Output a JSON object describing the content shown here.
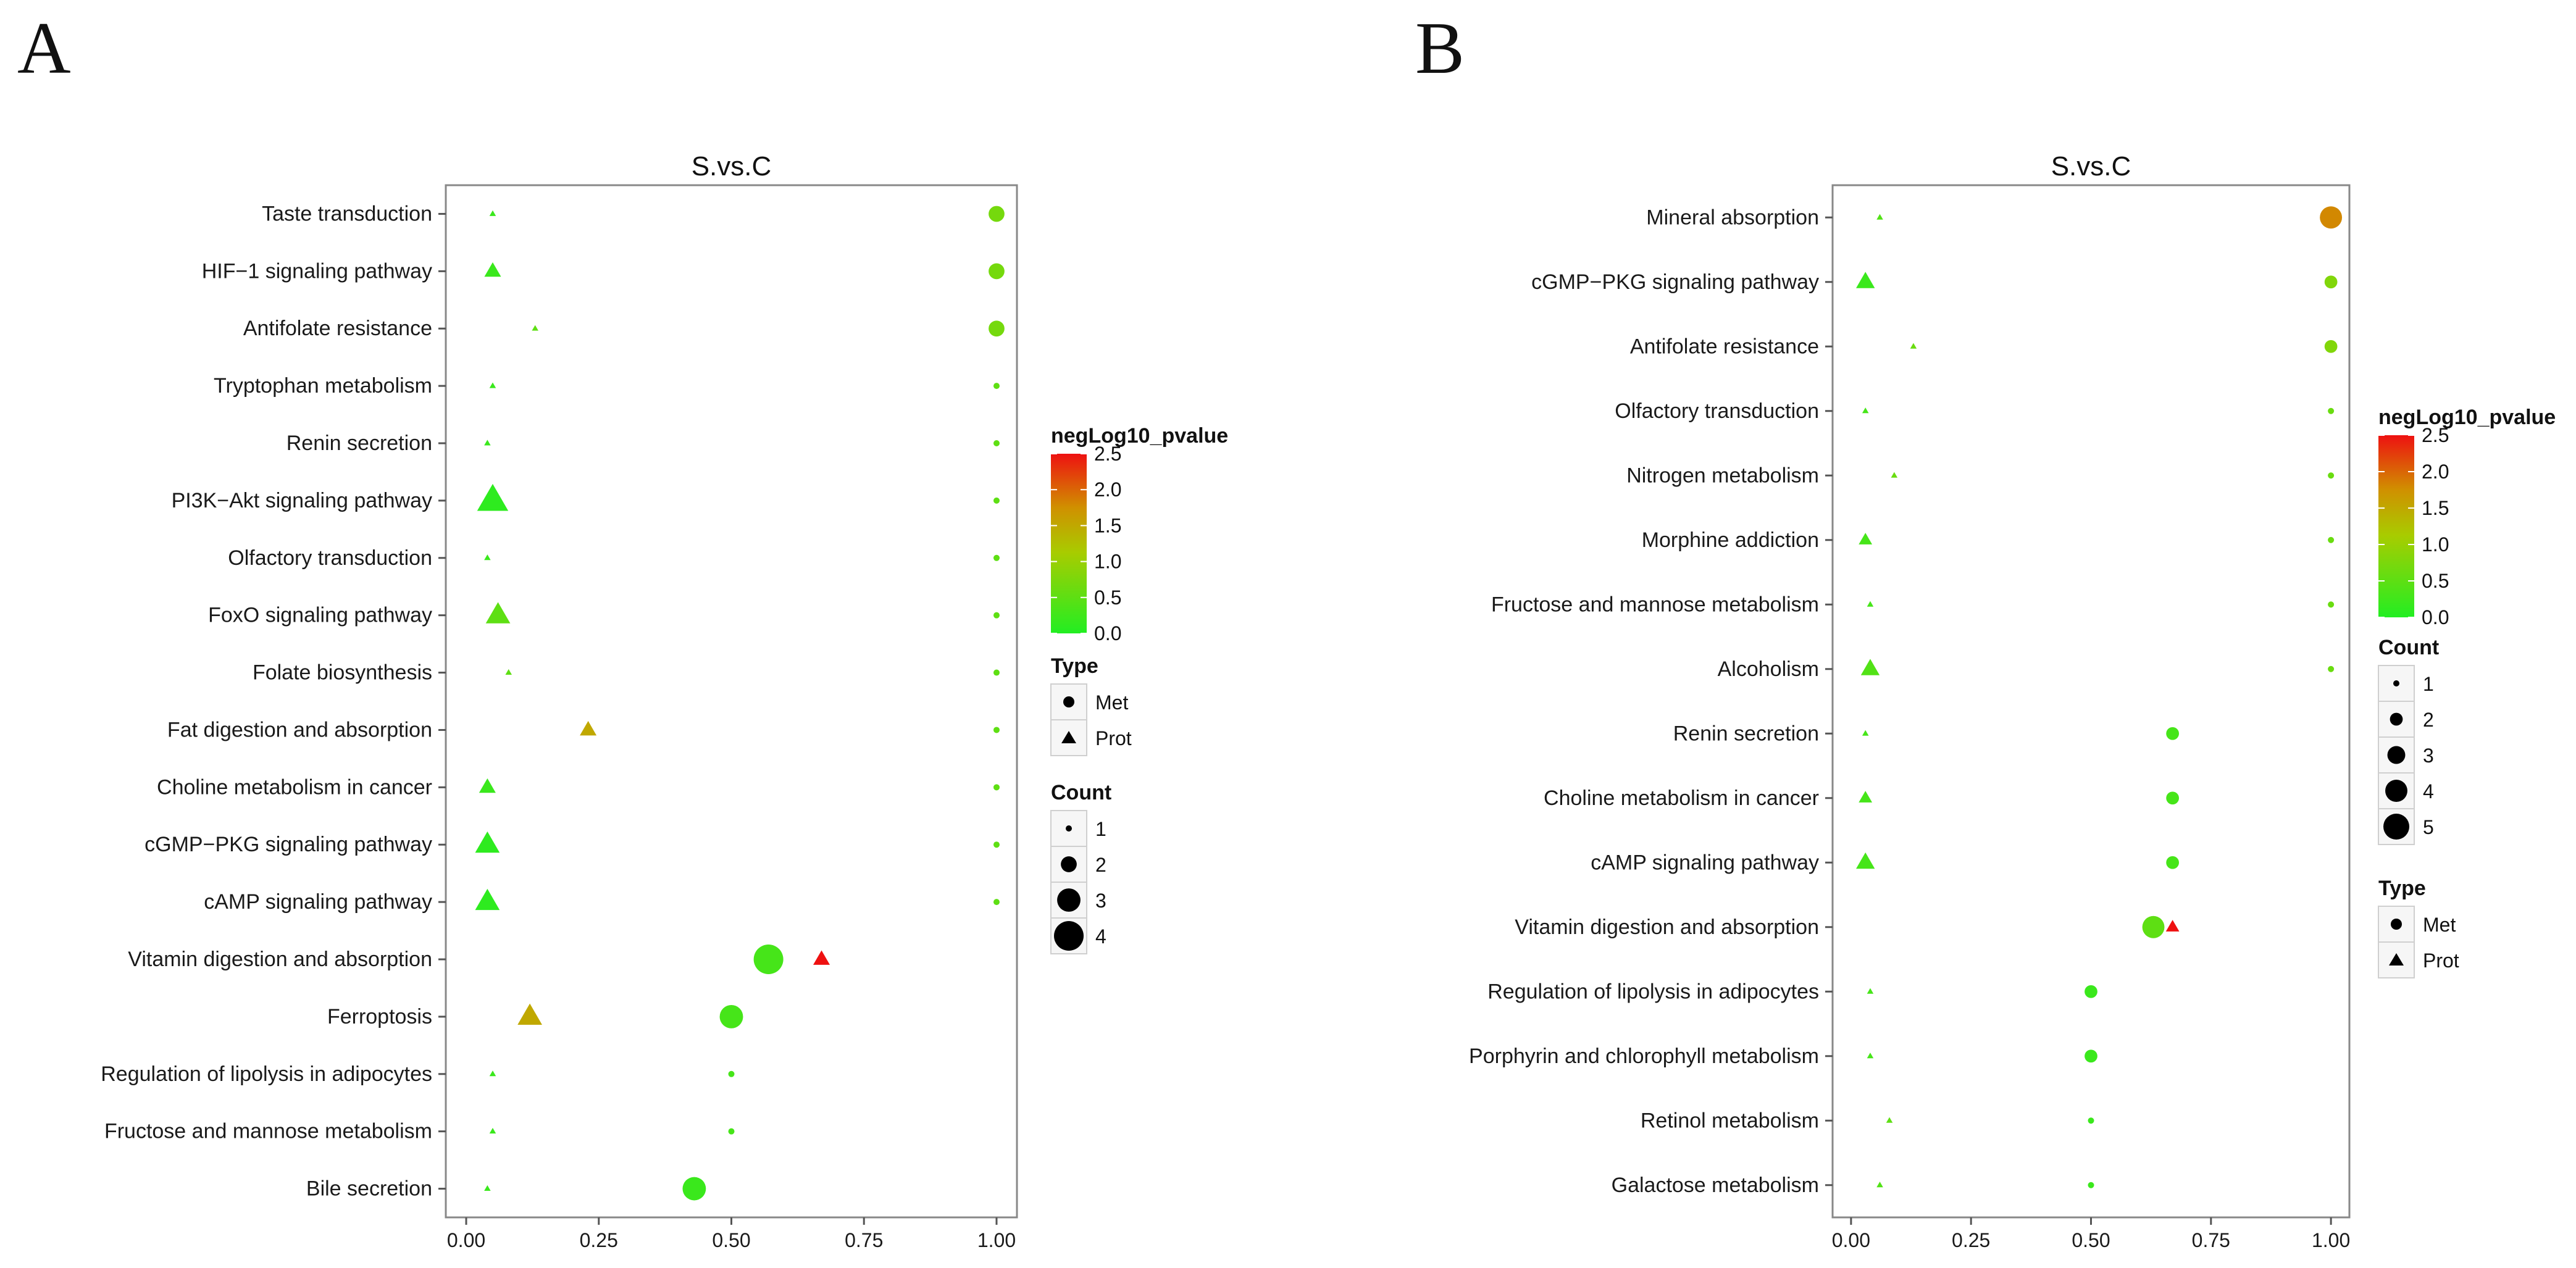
{
  "panels": [
    {
      "label": "A",
      "title": "S.vs.C",
      "legend": {
        "color_title": "negLog10_pvalue",
        "color_ticks": [
          "0.0",
          "0.5",
          "1.0",
          "1.5",
          "2.0",
          "2.5"
        ],
        "type_title": "Type",
        "type_items": [
          "Met",
          "Prot"
        ],
        "count_title": "Count",
        "count_items": [
          "1",
          "2",
          "3",
          "4"
        ]
      }
    },
    {
      "label": "B",
      "title": "S.vs.C",
      "legend": {
        "color_title": "negLog10_pvalue",
        "color_ticks": [
          "0.0",
          "0.5",
          "1.0",
          "1.5",
          "2.0",
          "2.5"
        ],
        "count_title": "Count",
        "count_items": [
          "1",
          "2",
          "3",
          "4",
          "5"
        ],
        "type_title": "Type",
        "type_items": [
          "Met",
          "Prot"
        ]
      }
    }
  ],
  "colors": {
    "low": "#22ee22",
    "mid": "#c8b400",
    "high": "#ee1111"
  },
  "chart_data": [
    {
      "type": "scatter",
      "title": "S.vs.C",
      "xlabel": "",
      "ylabel": "",
      "xlim": [
        0,
        1
      ],
      "xticks": [
        "0.00",
        "0.25",
        "0.50",
        "0.75",
        "1.00"
      ],
      "color_range": [
        0,
        2.5
      ],
      "categories": [
        "Taste transduction",
        "HIF−1 signaling pathway",
        "Antifolate resistance",
        "Tryptophan metabolism",
        "Renin secretion",
        "PI3K−Akt signaling pathway",
        "Olfactory transduction",
        "FoxO signaling pathway",
        "Folate biosynthesis",
        "Fat digestion and absorption",
        "Choline metabolism in cancer",
        "cGMP−PKG signaling pathway",
        "cAMP signaling pathway",
        "Vitamin digestion and absorption",
        "Ferroptosis",
        "Regulation of lipolysis in adipocytes",
        "Fructose and mannose metabolism",
        "Bile secretion"
      ],
      "points": [
        {
          "category": "Taste transduction",
          "x": 0.05,
          "type": "Prot",
          "count": 1,
          "neglog10p": 0.2
        },
        {
          "category": "Taste transduction",
          "x": 1.0,
          "type": "Met",
          "count": 2,
          "neglog10p": 0.7
        },
        {
          "category": "HIF−1 signaling pathway",
          "x": 0.05,
          "type": "Prot",
          "count": 2,
          "neglog10p": 0.2
        },
        {
          "category": "HIF−1 signaling pathway",
          "x": 1.0,
          "type": "Met",
          "count": 2,
          "neglog10p": 0.7
        },
        {
          "category": "Antifolate resistance",
          "x": 0.13,
          "type": "Prot",
          "count": 1,
          "neglog10p": 0.5
        },
        {
          "category": "Antifolate resistance",
          "x": 1.0,
          "type": "Met",
          "count": 2,
          "neglog10p": 0.7
        },
        {
          "category": "Tryptophan metabolism",
          "x": 0.05,
          "type": "Prot",
          "count": 1,
          "neglog10p": 0.2
        },
        {
          "category": "Tryptophan metabolism",
          "x": 1.0,
          "type": "Met",
          "count": 1,
          "neglog10p": 0.5
        },
        {
          "category": "Renin secretion",
          "x": 0.04,
          "type": "Prot",
          "count": 1,
          "neglog10p": 0.2
        },
        {
          "category": "Renin secretion",
          "x": 1.0,
          "type": "Met",
          "count": 1,
          "neglog10p": 0.5
        },
        {
          "category": "PI3K−Akt signaling pathway",
          "x": 0.05,
          "type": "Prot",
          "count": 4,
          "neglog10p": 0.1
        },
        {
          "category": "PI3K−Akt signaling pathway",
          "x": 1.0,
          "type": "Met",
          "count": 1,
          "neglog10p": 0.5
        },
        {
          "category": "Olfactory transduction",
          "x": 0.04,
          "type": "Prot",
          "count": 1,
          "neglog10p": 0.2
        },
        {
          "category": "Olfactory transduction",
          "x": 1.0,
          "type": "Met",
          "count": 1,
          "neglog10p": 0.5
        },
        {
          "category": "FoxO signaling pathway",
          "x": 0.06,
          "type": "Prot",
          "count": 3,
          "neglog10p": 0.5
        },
        {
          "category": "FoxO signaling pathway",
          "x": 1.0,
          "type": "Met",
          "count": 1,
          "neglog10p": 0.5
        },
        {
          "category": "Folate biosynthesis",
          "x": 0.08,
          "type": "Prot",
          "count": 1,
          "neglog10p": 0.5
        },
        {
          "category": "Folate biosynthesis",
          "x": 1.0,
          "type": "Met",
          "count": 1,
          "neglog10p": 0.5
        },
        {
          "category": "Fat digestion and absorption",
          "x": 0.23,
          "type": "Prot",
          "count": 2,
          "neglog10p": 1.5
        },
        {
          "category": "Fat digestion and absorption",
          "x": 1.0,
          "type": "Met",
          "count": 1,
          "neglog10p": 0.5
        },
        {
          "category": "Choline metabolism in cancer",
          "x": 0.04,
          "type": "Prot",
          "count": 2,
          "neglog10p": 0.2
        },
        {
          "category": "Choline metabolism in cancer",
          "x": 1.0,
          "type": "Met",
          "count": 1,
          "neglog10p": 0.5
        },
        {
          "category": "cGMP−PKG signaling pathway",
          "x": 0.04,
          "type": "Prot",
          "count": 3,
          "neglog10p": 0.1
        },
        {
          "category": "cGMP−PKG signaling pathway",
          "x": 1.0,
          "type": "Met",
          "count": 1,
          "neglog10p": 0.5
        },
        {
          "category": "cAMP signaling pathway",
          "x": 0.04,
          "type": "Prot",
          "count": 3,
          "neglog10p": 0.1
        },
        {
          "category": "cAMP signaling pathway",
          "x": 1.0,
          "type": "Met",
          "count": 1,
          "neglog10p": 0.5
        },
        {
          "category": "Vitamin digestion and absorption",
          "x": 0.57,
          "type": "Met",
          "count": 4,
          "neglog10p": 0.3
        },
        {
          "category": "Vitamin digestion and absorption",
          "x": 0.67,
          "type": "Prot",
          "count": 2,
          "neglog10p": 2.5
        },
        {
          "category": "Ferroptosis",
          "x": 0.12,
          "type": "Prot",
          "count": 3,
          "neglog10p": 1.5
        },
        {
          "category": "Ferroptosis",
          "x": 0.5,
          "type": "Met",
          "count": 3,
          "neglog10p": 0.3
        },
        {
          "category": "Regulation of lipolysis in adipocytes",
          "x": 0.05,
          "type": "Prot",
          "count": 1,
          "neglog10p": 0.2
        },
        {
          "category": "Regulation of lipolysis in adipocytes",
          "x": 0.5,
          "type": "Met",
          "count": 1,
          "neglog10p": 0.3
        },
        {
          "category": "Fructose and mannose metabolism",
          "x": 0.05,
          "type": "Prot",
          "count": 1,
          "neglog10p": 0.2
        },
        {
          "category": "Fructose and mannose metabolism",
          "x": 0.5,
          "type": "Met",
          "count": 1,
          "neglog10p": 0.3
        },
        {
          "category": "Bile secretion",
          "x": 0.04,
          "type": "Prot",
          "count": 1,
          "neglog10p": 0.2
        },
        {
          "category": "Bile secretion",
          "x": 0.43,
          "type": "Met",
          "count": 3,
          "neglog10p": 0.2
        }
      ]
    },
    {
      "type": "scatter",
      "title": "S.vs.C",
      "xlabel": "",
      "ylabel": "",
      "xlim": [
        0,
        1
      ],
      "xticks": [
        "0.00",
        "0.25",
        "0.50",
        "0.75",
        "1.00"
      ],
      "color_range": [
        0,
        2.5
      ],
      "categories": [
        "Mineral absorption",
        "cGMP−PKG signaling pathway",
        "Antifolate resistance",
        "Olfactory transduction",
        "Nitrogen metabolism",
        "Morphine addiction",
        "Fructose and mannose metabolism",
        "Alcoholism",
        "Renin secretion",
        "Choline metabolism in cancer",
        "cAMP signaling pathway",
        "Vitamin digestion and absorption",
        "Regulation of lipolysis in adipocytes",
        "Porphyrin and chlorophyll metabolism",
        "Retinol metabolism",
        "Galactose metabolism"
      ],
      "points": [
        {
          "category": "Mineral absorption",
          "x": 0.06,
          "type": "Prot",
          "count": 1,
          "neglog10p": 0.4
        },
        {
          "category": "Mineral absorption",
          "x": 1.0,
          "type": "Met",
          "count": 4,
          "neglog10p": 1.8
        },
        {
          "category": "cGMP−PKG signaling pathway",
          "x": 0.03,
          "type": "Prot",
          "count": 3,
          "neglog10p": 0.2
        },
        {
          "category": "cGMP−PKG signaling pathway",
          "x": 1.0,
          "type": "Met",
          "count": 2,
          "neglog10p": 0.8
        },
        {
          "category": "Antifolate resistance",
          "x": 0.13,
          "type": "Prot",
          "count": 1,
          "neglog10p": 0.6
        },
        {
          "category": "Antifolate resistance",
          "x": 1.0,
          "type": "Met",
          "count": 2,
          "neglog10p": 0.8
        },
        {
          "category": "Olfactory transduction",
          "x": 0.03,
          "type": "Prot",
          "count": 1,
          "neglog10p": 0.3
        },
        {
          "category": "Olfactory transduction",
          "x": 1.0,
          "type": "Met",
          "count": 1,
          "neglog10p": 0.6
        },
        {
          "category": "Nitrogen metabolism",
          "x": 0.09,
          "type": "Prot",
          "count": 1,
          "neglog10p": 0.6
        },
        {
          "category": "Nitrogen metabolism",
          "x": 1.0,
          "type": "Met",
          "count": 1,
          "neglog10p": 0.6
        },
        {
          "category": "Morphine addiction",
          "x": 0.03,
          "type": "Prot",
          "count": 2,
          "neglog10p": 0.3
        },
        {
          "category": "Morphine addiction",
          "x": 1.0,
          "type": "Met",
          "count": 1,
          "neglog10p": 0.6
        },
        {
          "category": "Fructose and mannose metabolism",
          "x": 0.04,
          "type": "Prot",
          "count": 1,
          "neglog10p": 0.3
        },
        {
          "category": "Fructose and mannose metabolism",
          "x": 1.0,
          "type": "Met",
          "count": 1,
          "neglog10p": 0.6
        },
        {
          "category": "Alcoholism",
          "x": 0.04,
          "type": "Prot",
          "count": 3,
          "neglog10p": 0.4
        },
        {
          "category": "Alcoholism",
          "x": 1.0,
          "type": "Met",
          "count": 1,
          "neglog10p": 0.6
        },
        {
          "category": "Renin secretion",
          "x": 0.03,
          "type": "Prot",
          "count": 1,
          "neglog10p": 0.3
        },
        {
          "category": "Renin secretion",
          "x": 0.67,
          "type": "Met",
          "count": 2,
          "neglog10p": 0.3
        },
        {
          "category": "Choline metabolism in cancer",
          "x": 0.03,
          "type": "Prot",
          "count": 2,
          "neglog10p": 0.3
        },
        {
          "category": "Choline metabolism in cancer",
          "x": 0.67,
          "type": "Met",
          "count": 2,
          "neglog10p": 0.3
        },
        {
          "category": "cAMP signaling pathway",
          "x": 0.03,
          "type": "Prot",
          "count": 3,
          "neglog10p": 0.3
        },
        {
          "category": "cAMP signaling pathway",
          "x": 0.67,
          "type": "Met",
          "count": 2,
          "neglog10p": 0.3
        },
        {
          "category": "Vitamin digestion and absorption",
          "x": 0.63,
          "type": "Met",
          "count": 4,
          "neglog10p": 0.5
        },
        {
          "category": "Vitamin digestion and absorption",
          "x": 0.67,
          "type": "Prot",
          "count": 2,
          "neglog10p": 2.5
        },
        {
          "category": "Regulation of lipolysis in adipocytes",
          "x": 0.04,
          "type": "Prot",
          "count": 1,
          "neglog10p": 0.3
        },
        {
          "category": "Regulation of lipolysis in adipocytes",
          "x": 0.5,
          "type": "Met",
          "count": 2,
          "neglog10p": 0.2
        },
        {
          "category": "Porphyrin and chlorophyll metabolism",
          "x": 0.04,
          "type": "Prot",
          "count": 1,
          "neglog10p": 0.3
        },
        {
          "category": "Porphyrin and chlorophyll metabolism",
          "x": 0.5,
          "type": "Met",
          "count": 2,
          "neglog10p": 0.2
        },
        {
          "category": "Retinol metabolism",
          "x": 0.08,
          "type": "Prot",
          "count": 1,
          "neglog10p": 0.5
        },
        {
          "category": "Retinol metabolism",
          "x": 0.5,
          "type": "Met",
          "count": 1,
          "neglog10p": 0.2
        },
        {
          "category": "Galactose metabolism",
          "x": 0.06,
          "type": "Prot",
          "count": 1,
          "neglog10p": 0.4
        },
        {
          "category": "Galactose metabolism",
          "x": 0.5,
          "type": "Met",
          "count": 1,
          "neglog10p": 0.2
        }
      ]
    }
  ]
}
